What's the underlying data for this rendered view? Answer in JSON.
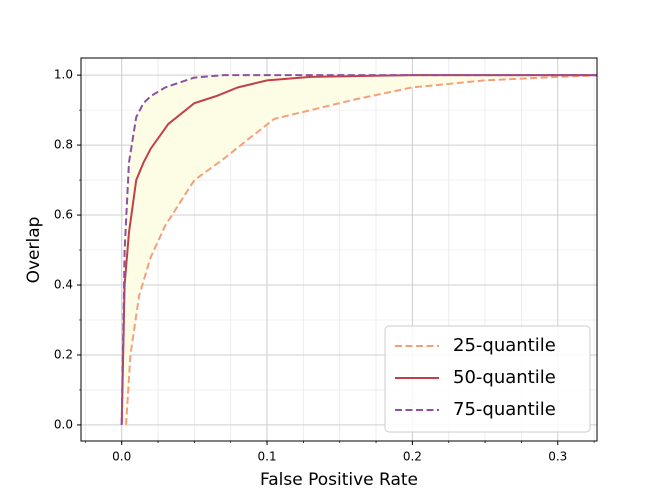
{
  "chart_data": {
    "type": "line",
    "x_label": "False Positive Rate",
    "y_label": "Overlap",
    "xlim": [
      -0.028,
      0.327
    ],
    "ylim": [
      -0.046,
      1.049
    ],
    "xticks": [
      {
        "value": 0,
        "label": "0.0"
      },
      0.1,
      0.2,
      0.3
    ],
    "yticks": [
      {
        "value": 0,
        "label": "0.0"
      },
      0.2,
      0.4,
      0.6,
      0.8,
      {
        "value": 1,
        "label": "1.0"
      }
    ],
    "grid": true,
    "minor_grid": true,
    "legend": "lower right",
    "fill_between_color": "#fdfde6",
    "series": [
      {
        "name": "25-quantile",
        "color": "#f4a07a",
        "dash": true,
        "x": [
          0.003,
          0.006,
          0.012,
          0.02,
          0.03,
          0.05,
          0.07,
          0.085,
          0.105,
          0.13,
          0.16,
          0.2,
          0.25,
          0.3,
          0.33
        ],
        "values": [
          0,
          0.2,
          0.37,
          0.48,
          0.57,
          0.7,
          0.76,
          0.81,
          0.875,
          0.9,
          0.93,
          0.965,
          0.985,
          0.995,
          1.0
        ]
      },
      {
        "name": "50-quantile",
        "color": "#c0404a",
        "dash": false,
        "x": [
          0,
          0.002,
          0.005,
          0.01,
          0.015,
          0.02,
          0.032,
          0.05,
          0.065,
          0.08,
          0.1,
          0.13,
          0.2,
          0.33
        ],
        "values": [
          0,
          0.4,
          0.55,
          0.7,
          0.75,
          0.79,
          0.86,
          0.92,
          0.94,
          0.965,
          0.985,
          0.995,
          1.0,
          1.0
        ]
      },
      {
        "name": "75-quantile",
        "color": "#9050a0",
        "dash": true,
        "x": [
          0,
          0.002,
          0.005,
          0.01,
          0.015,
          0.02,
          0.03,
          0.05,
          0.07,
          0.1,
          0.15,
          0.33
        ],
        "values": [
          0,
          0.5,
          0.75,
          0.88,
          0.92,
          0.94,
          0.965,
          0.993,
          1.0,
          1.0,
          1.0,
          1.0
        ]
      }
    ]
  }
}
